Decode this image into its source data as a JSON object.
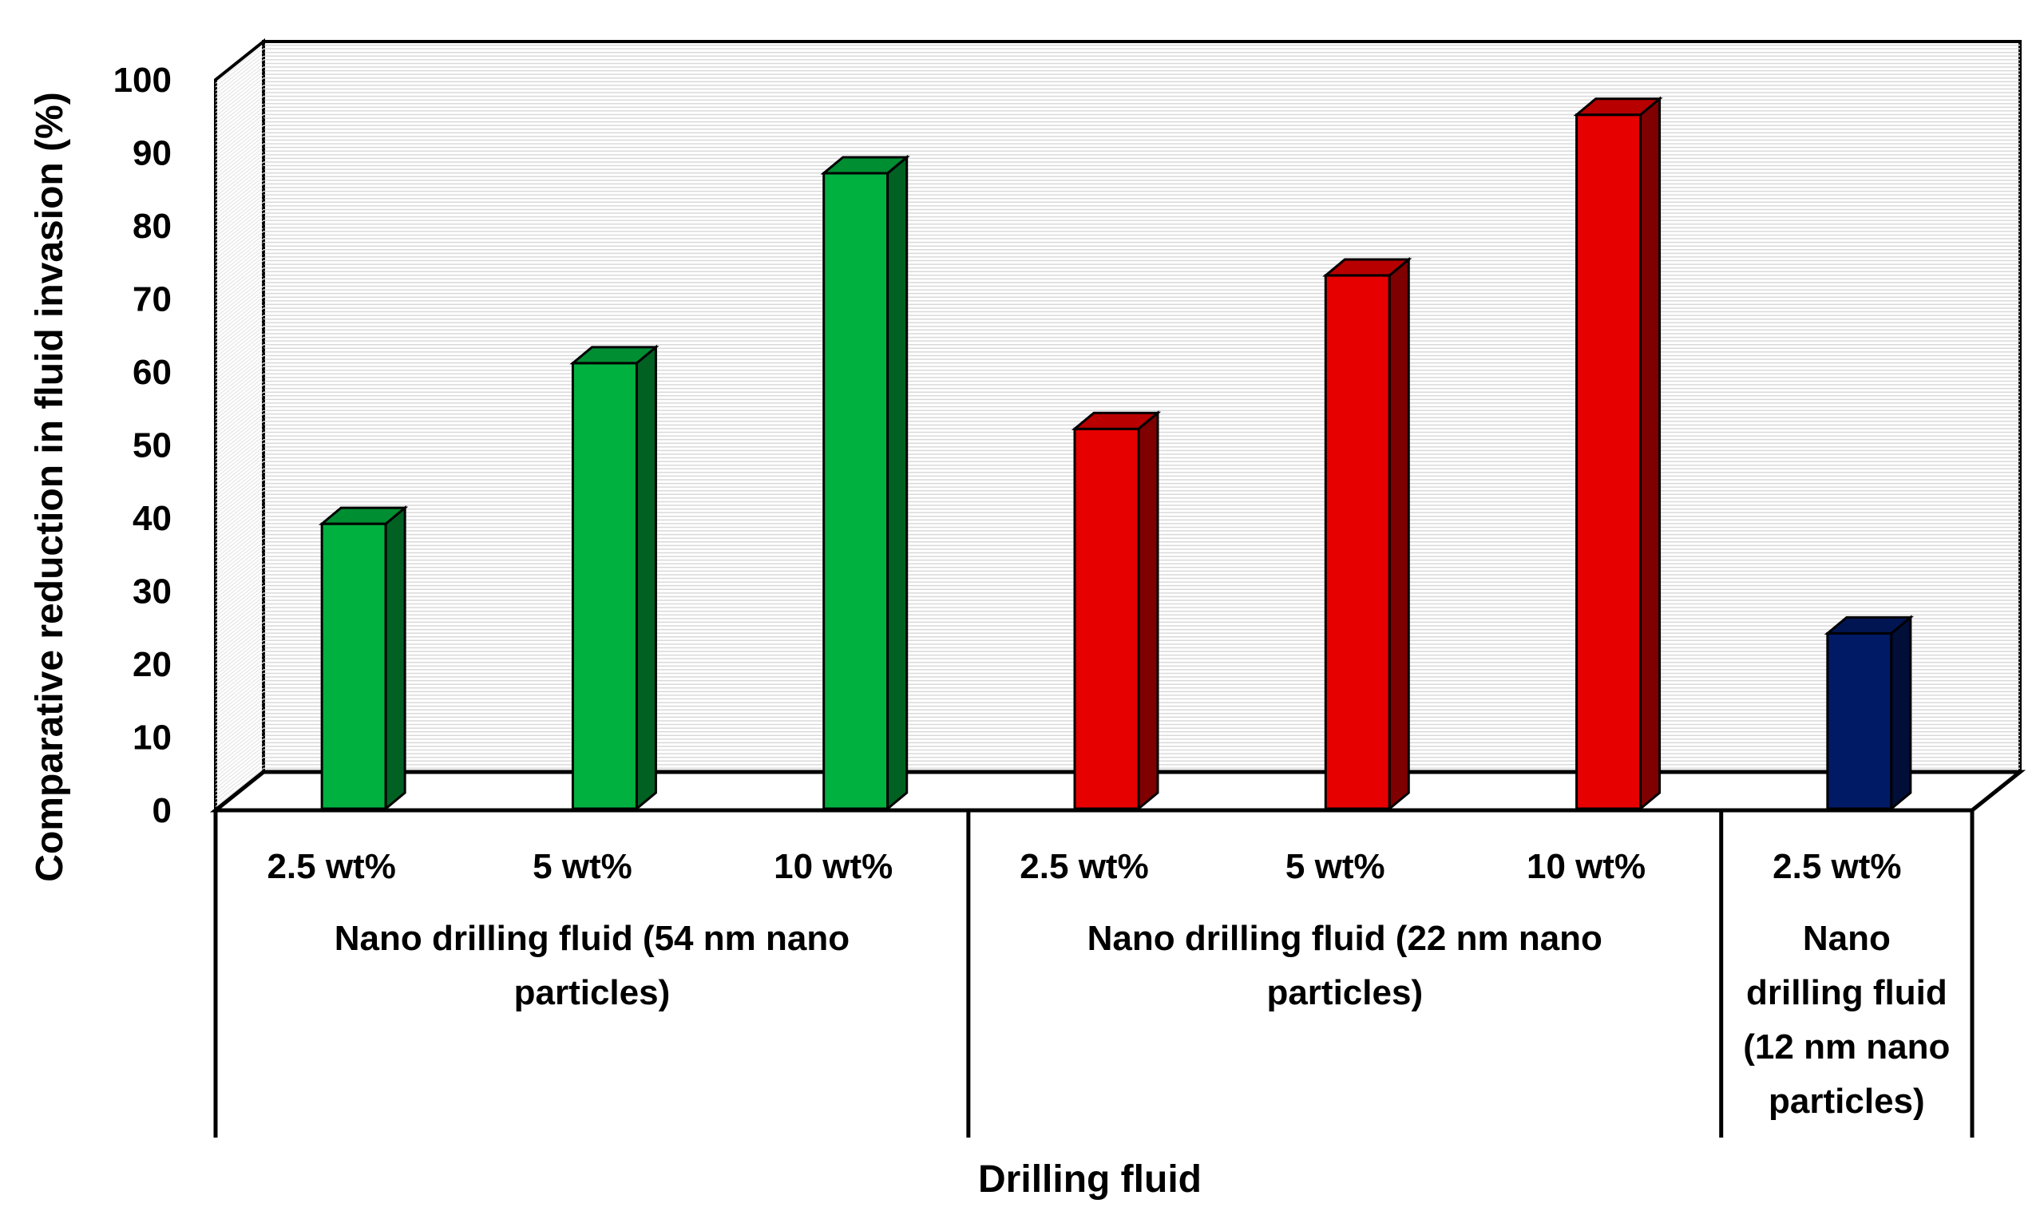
{
  "chart_data": {
    "type": "bar",
    "style": "3d-clustered-column",
    "xlabel": "Drilling fluid",
    "ylabel": "Comparative reduction in fluid invasion (%)",
    "ylim": [
      0,
      100
    ],
    "yticks": [
      0,
      10,
      20,
      30,
      40,
      50,
      60,
      70,
      80,
      90,
      100
    ],
    "grid": true,
    "groups": [
      {
        "name": "Nano drilling fluid (54 nm nano particles)",
        "name_lines": [
          "Nano drilling fluid (54 nm nano",
          "particles)"
        ],
        "color": "#00b140",
        "categories": [
          "2.5 wt%",
          "5 wt%",
          "10 wt%"
        ],
        "values": [
          39,
          61,
          87
        ]
      },
      {
        "name": "Nano drilling fluid (22 nm nano particles)",
        "name_lines": [
          "Nano drilling fluid (22 nm nano",
          "particles)"
        ],
        "color": "#e60000",
        "categories": [
          "2.5 wt%",
          "5 wt%",
          "10 wt%"
        ],
        "values": [
          52,
          73,
          95
        ]
      },
      {
        "name": "Nano drilling fluid (12 nm nano particles)",
        "name_lines": [
          "Nano",
          "drilling fluid",
          "(12 nm nano",
          "particles)"
        ],
        "color": "#001a66",
        "categories": [
          "2.5 wt%"
        ],
        "values": [
          24
        ]
      }
    ]
  }
}
